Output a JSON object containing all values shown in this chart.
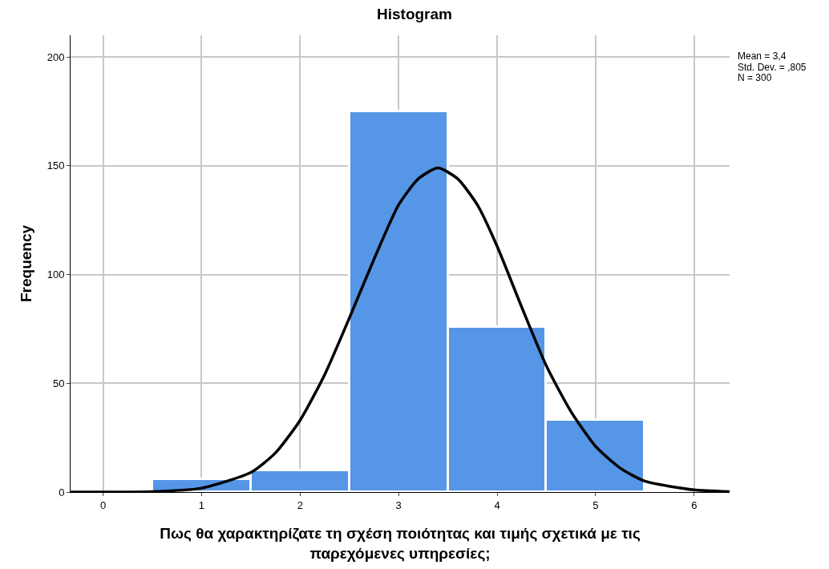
{
  "chart_data": {
    "type": "histogram",
    "title": "Histogram",
    "xlabel": "Πως θα χαρακτηρίζατε τη σχέση ποιότητας και τιμής σχετικά με τις παρεχόμενες υπηρεσίες;",
    "ylabel": "Frequency",
    "bins": [
      0.5,
      1.5,
      2.5,
      3.5,
      4.5,
      5.5
    ],
    "values": [
      6,
      10,
      175,
      76,
      33
    ],
    "color": "#5596e6",
    "series": [
      {
        "type": "line",
        "color": "#000000",
        "x": [
          -0.33,
          0,
          0.5,
          1,
          1.5,
          1.75,
          2,
          2.25,
          2.5,
          2.75,
          3,
          3.2,
          3.4,
          3.6,
          3.8,
          4,
          4.25,
          4.5,
          4.75,
          5,
          5.25,
          5.5,
          6,
          6.36
        ],
        "values": [
          0,
          0,
          0.2,
          1.8,
          9,
          18,
          33,
          54,
          80,
          107,
          132,
          144,
          149,
          144,
          132,
          113,
          85,
          58,
          37,
          21,
          11,
          5,
          1,
          0.2
        ]
      }
    ],
    "xlim": [
      -0.33,
      6.36
    ],
    "xticks": [
      0,
      1,
      2,
      3,
      4,
      5,
      6
    ],
    "ylim": [
      0,
      210
    ],
    "yticks": [
      0,
      50,
      100,
      150,
      200
    ],
    "grid": true,
    "line_style": "solid",
    "marker": "none",
    "annotations": [
      "Mean = 3,4",
      "Std. Dev. = ,805",
      "N = 300"
    ]
  }
}
